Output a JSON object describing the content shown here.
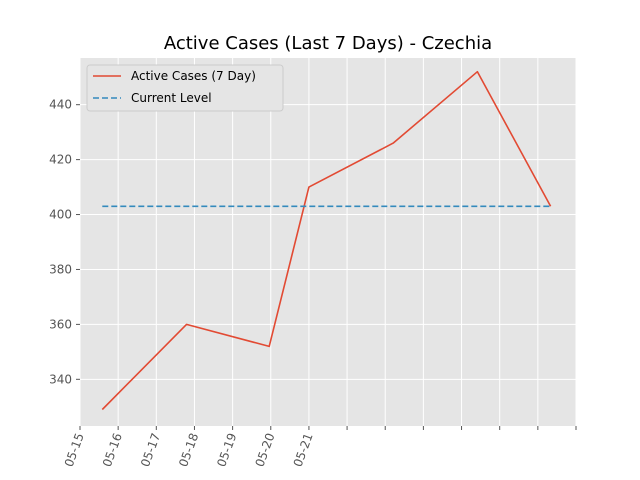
{
  "chart_data": {
    "type": "line",
    "title": "Active Cases (Last 7 Days) - Czechia",
    "xlabel": "",
    "ylabel": "",
    "x_tick_labels": [
      "05-15",
      "05-16",
      "05-17",
      "05-18",
      "05-19",
      "05-20",
      "05-21"
    ],
    "ylim": [
      323,
      457
    ],
    "y_ticks": [
      340,
      360,
      380,
      400,
      420,
      440
    ],
    "grid": true,
    "legend_position": "upper-left",
    "series": [
      {
        "name": "Active Cases (7 Day)",
        "style": "solid",
        "color": "#E24A33",
        "points": [
          {
            "x": "2020-05-15 14:00",
            "y": 329
          },
          {
            "x": "2020-05-17 19:00",
            "y": 360
          },
          {
            "x": "2020-05-19 23:00",
            "y": 352
          },
          {
            "x": "2020-05-21 00:00",
            "y": 410
          },
          {
            "x": "2020-05-23 05:00",
            "y": 426
          },
          {
            "x": "2020-05-25 10:00",
            "y": 452
          },
          {
            "x": "2020-05-27 08:00",
            "y": 403
          }
        ]
      },
      {
        "name": "Current Level",
        "style": "dashed",
        "color": "#348ABD",
        "points": [
          {
            "x": "2020-05-15 14:00",
            "y": 403
          },
          {
            "x": "2020-05-27 08:00",
            "y": 403
          }
        ]
      }
    ]
  }
}
